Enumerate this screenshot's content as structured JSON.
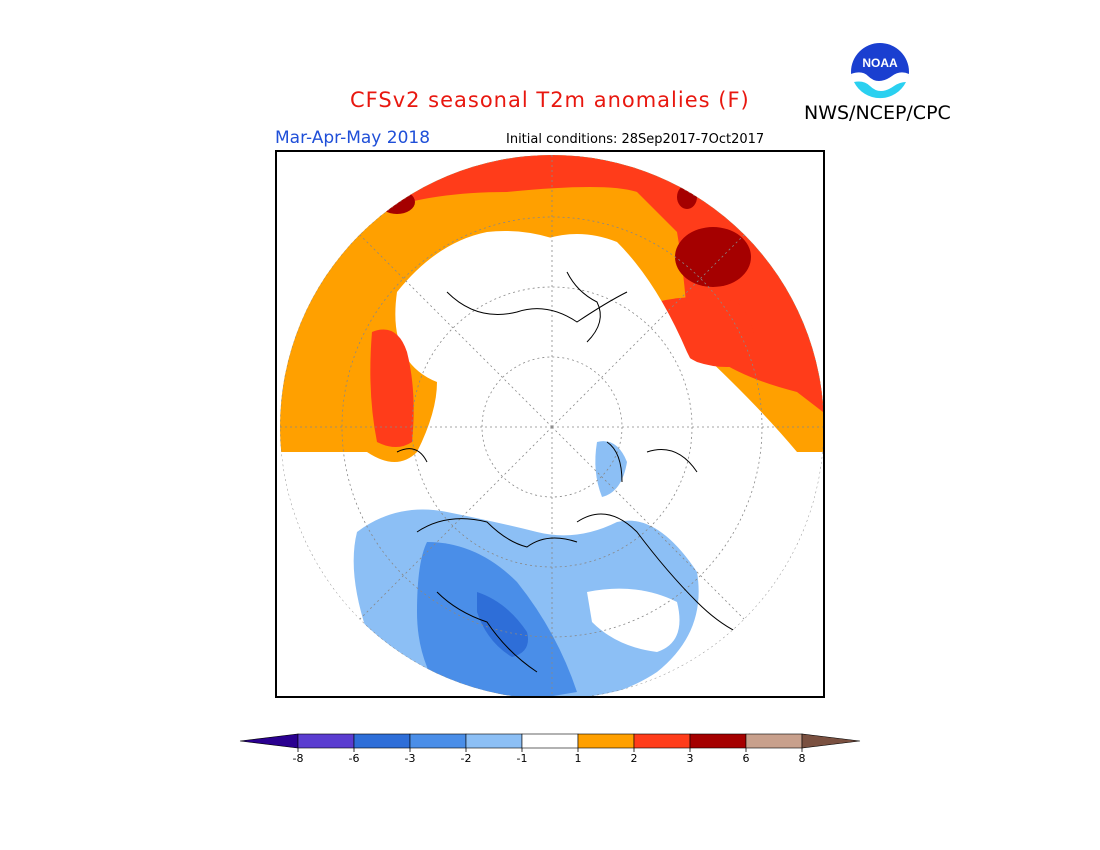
{
  "header": {
    "title": "CFSv2 seasonal T2m anomalies (F)",
    "agency": "NWS/NCEP/CPC",
    "logo_text": "NOAA",
    "season": "Mar-Apr-May 2018",
    "initial_conditions": "Initial conditions: 28Sep2017-7Oct2017"
  },
  "map": {
    "projection": "north-polar-stereographic",
    "variable": "2m temperature anomaly",
    "units": "F",
    "graticule": "dotted"
  },
  "colorbar": {
    "labels": [
      "-8",
      "-6",
      "-3",
      "-2",
      "-1",
      "1",
      "2",
      "3",
      "6",
      "8"
    ],
    "colors": [
      "#2a0090",
      "#5a3cd0",
      "#2e6ed8",
      "#4a8ee8",
      "#8cbff5",
      "#ffffff",
      "#ffa000",
      "#ff3c1a",
      "#a50000",
      "#c8a08c",
      "#7a5040"
    ]
  }
}
